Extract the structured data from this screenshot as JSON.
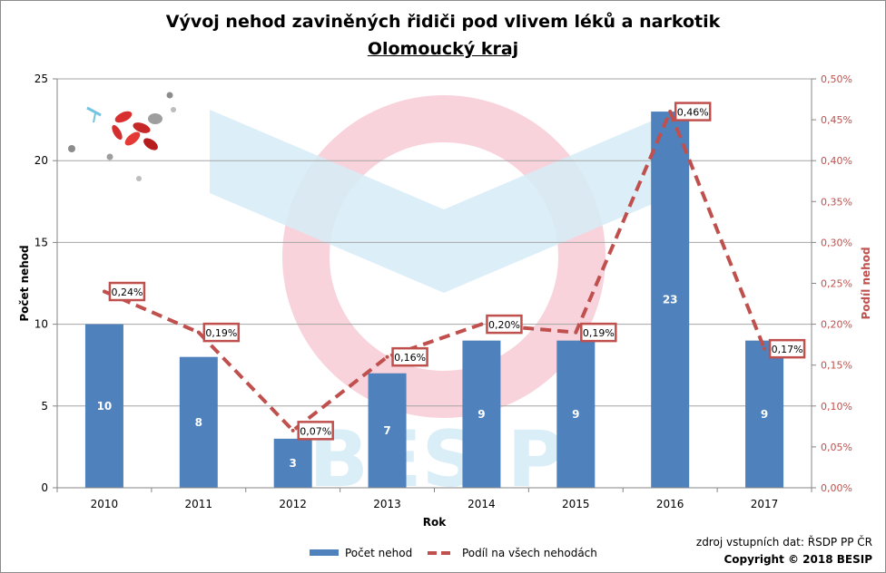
{
  "title": "Vývoj nehod zaviněných řidiči pod vlivem léků a narkotik",
  "subtitle": "Olomoucký kraj",
  "watermark_text": "BESIP",
  "source_note": "zdroj vstupních dat: ŘSDP PP ČR",
  "copyright": "Copyright © 2018 BESIP",
  "colors": {
    "bar": "#4f81bd",
    "line": "#c0504d",
    "grid": "#a6a6a6",
    "watermark_red": "#f9d3dc",
    "watermark_blue": "#d6ecf7"
  },
  "chart_data": {
    "type": "bar",
    "categories": [
      "2010",
      "2011",
      "2012",
      "2013",
      "2014",
      "2015",
      "2016",
      "2017"
    ],
    "xlabel": "Rok",
    "ylabel": "Počet nehod",
    "y2label": "Podíl nehod",
    "ylim": [
      0,
      25
    ],
    "y_ticks": [
      "0",
      "5",
      "10",
      "15",
      "20",
      "25"
    ],
    "y2lim": [
      0,
      0.5
    ],
    "y2_ticks": [
      "0,00%",
      "0,05%",
      "0,10%",
      "0,15%",
      "0,20%",
      "0,25%",
      "0,30%",
      "0,35%",
      "0,40%",
      "0,45%",
      "0,50%"
    ],
    "grid": true,
    "legend_position": "bottom",
    "series": [
      {
        "name": "Počet nehod",
        "type": "bar",
        "axis": "left",
        "values": [
          10,
          8,
          3,
          7,
          9,
          9,
          23,
          9
        ],
        "labels": [
          "10",
          "8",
          "3",
          "7",
          "9",
          "9",
          "23",
          "9"
        ]
      },
      {
        "name": "Podíl na všech nehodách",
        "type": "line",
        "style": "dashed",
        "axis": "right",
        "values": [
          0.24,
          0.19,
          0.07,
          0.16,
          0.2,
          0.19,
          0.46,
          0.17
        ],
        "labels": [
          "0,24%",
          "0,19%",
          "0,07%",
          "0,16%",
          "0,20%",
          "0,19%",
          "0,46%",
          "0,17%"
        ]
      }
    ]
  }
}
